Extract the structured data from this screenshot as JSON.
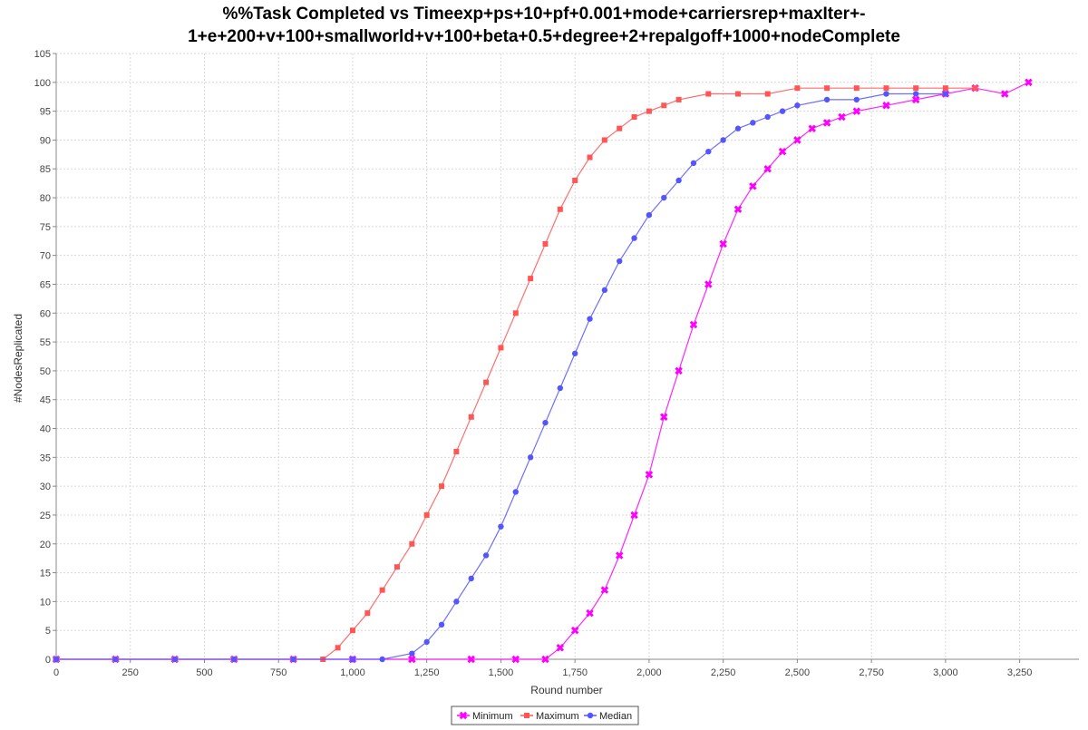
{
  "chart_data": {
    "type": "line",
    "title_line1": "%%Task Completed vs Timeexp+ps+10+pf+0.001+mode+carriersrep+maxIter+-",
    "title_line2": "1+e+200+v+100+smallworld+v+100+beta+0.5+degree+2+repalgoff+1000+nodeComplete",
    "xlabel": "Round number",
    "ylabel": "#NodesReplicated",
    "xlim": [
      0,
      3450
    ],
    "ylim": [
      0,
      105
    ],
    "x_ticks": [
      "0",
      "250",
      "500",
      "750",
      "1,000",
      "1,250",
      "1,500",
      "1,750",
      "2,000",
      "2,250",
      "2,500",
      "2,750",
      "3,000",
      "3,250"
    ],
    "y_ticks": [
      "0",
      "5",
      "10",
      "15",
      "20",
      "25",
      "30",
      "35",
      "40",
      "45",
      "50",
      "55",
      "60",
      "65",
      "70",
      "75",
      "80",
      "85",
      "90",
      "95",
      "100",
      "105"
    ],
    "grid": true,
    "legend_position": "bottom",
    "series": [
      {
        "name": "Minimum",
        "color": "#ff00ff",
        "marker": "x",
        "points": [
          [
            0,
            0
          ],
          [
            200,
            0
          ],
          [
            400,
            0
          ],
          [
            600,
            0
          ],
          [
            800,
            0
          ],
          [
            1000,
            0
          ],
          [
            1200,
            0
          ],
          [
            1400,
            0
          ],
          [
            1550,
            0
          ],
          [
            1650,
            0
          ],
          [
            1700,
            2
          ],
          [
            1750,
            5
          ],
          [
            1800,
            8
          ],
          [
            1850,
            12
          ],
          [
            1900,
            18
          ],
          [
            1950,
            25
          ],
          [
            2000,
            32
          ],
          [
            2050,
            42
          ],
          [
            2100,
            50
          ],
          [
            2150,
            58
          ],
          [
            2200,
            65
          ],
          [
            2250,
            72
          ],
          [
            2300,
            78
          ],
          [
            2350,
            82
          ],
          [
            2400,
            85
          ],
          [
            2450,
            88
          ],
          [
            2500,
            90
          ],
          [
            2550,
            92
          ],
          [
            2600,
            93
          ],
          [
            2650,
            94
          ],
          [
            2700,
            95
          ],
          [
            2800,
            96
          ],
          [
            2900,
            97
          ],
          [
            3000,
            98
          ],
          [
            3100,
            99
          ],
          [
            3200,
            98
          ],
          [
            3280,
            100
          ]
        ]
      },
      {
        "name": "Maximum",
        "color": "#ff5555",
        "marker": "square",
        "points": [
          [
            0,
            0
          ],
          [
            200,
            0
          ],
          [
            400,
            0
          ],
          [
            600,
            0
          ],
          [
            800,
            0
          ],
          [
            900,
            0
          ],
          [
            950,
            2
          ],
          [
            1000,
            5
          ],
          [
            1050,
            8
          ],
          [
            1100,
            12
          ],
          [
            1150,
            16
          ],
          [
            1200,
            20
          ],
          [
            1250,
            25
          ],
          [
            1300,
            30
          ],
          [
            1350,
            36
          ],
          [
            1400,
            42
          ],
          [
            1450,
            48
          ],
          [
            1500,
            54
          ],
          [
            1550,
            60
          ],
          [
            1600,
            66
          ],
          [
            1650,
            72
          ],
          [
            1700,
            78
          ],
          [
            1750,
            83
          ],
          [
            1800,
            87
          ],
          [
            1850,
            90
          ],
          [
            1900,
            92
          ],
          [
            1950,
            94
          ],
          [
            2000,
            95
          ],
          [
            2050,
            96
          ],
          [
            2100,
            97
          ],
          [
            2200,
            98
          ],
          [
            2300,
            98
          ],
          [
            2400,
            98
          ],
          [
            2500,
            99
          ],
          [
            2600,
            99
          ],
          [
            2700,
            99
          ],
          [
            2800,
            99
          ],
          [
            2900,
            99
          ],
          [
            3000,
            99
          ],
          [
            3100,
            99
          ]
        ]
      },
      {
        "name": "Median",
        "color": "#5555ff",
        "marker": "circle",
        "points": [
          [
            0,
            0
          ],
          [
            200,
            0
          ],
          [
            400,
            0
          ],
          [
            600,
            0
          ],
          [
            800,
            0
          ],
          [
            1000,
            0
          ],
          [
            1100,
            0
          ],
          [
            1200,
            1
          ],
          [
            1250,
            3
          ],
          [
            1300,
            6
          ],
          [
            1350,
            10
          ],
          [
            1400,
            14
          ],
          [
            1450,
            18
          ],
          [
            1500,
            23
          ],
          [
            1550,
            29
          ],
          [
            1600,
            35
          ],
          [
            1650,
            41
          ],
          [
            1700,
            47
          ],
          [
            1750,
            53
          ],
          [
            1800,
            59
          ],
          [
            1850,
            64
          ],
          [
            1900,
            69
          ],
          [
            1950,
            73
          ],
          [
            2000,
            77
          ],
          [
            2050,
            80
          ],
          [
            2100,
            83
          ],
          [
            2150,
            86
          ],
          [
            2200,
            88
          ],
          [
            2250,
            90
          ],
          [
            2300,
            92
          ],
          [
            2350,
            93
          ],
          [
            2400,
            94
          ],
          [
            2450,
            95
          ],
          [
            2500,
            96
          ],
          [
            2600,
            97
          ],
          [
            2700,
            97
          ],
          [
            2800,
            98
          ],
          [
            2900,
            98
          ],
          [
            3000,
            98
          ]
        ]
      }
    ]
  }
}
